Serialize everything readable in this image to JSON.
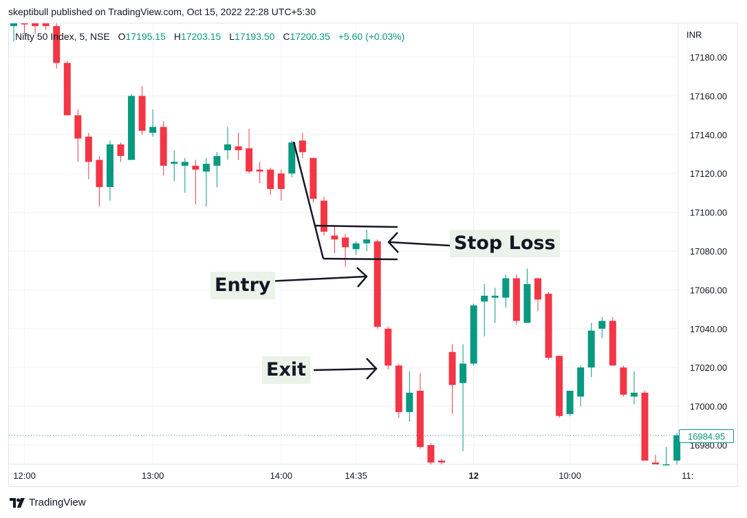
{
  "header": {
    "publisher_line": "skeptibull published on TradingView.com, Oct 15, 2022 22:28 UTC+5:30"
  },
  "legend": {
    "symbol": "Nifty 50 Index, 5, NSE",
    "open_label": "O",
    "open_value": "17195.15",
    "high_label": "H",
    "high_value": "17203.15",
    "low_label": "L",
    "low_value": "17193.50",
    "close_label": "C",
    "close_value": "17200.35",
    "change": "+5.60 (+0.03%)"
  },
  "currency": "INR",
  "last_price_tag": "16984.95",
  "footer": {
    "brand": "TradingView",
    "logo_icon": "tradingview-logo-icon"
  },
  "annotations": {
    "stop_loss": "Stop Loss",
    "entry": "Entry",
    "exit": "Exit"
  },
  "colors": {
    "up": "#089981",
    "down": "#f23645",
    "grid": "#f0f3fa",
    "annotation_bg": "#eaf2ea",
    "axis_text": "#131722"
  },
  "chart_data": {
    "type": "candlestick",
    "title": "",
    "xlabel": "",
    "ylabel": "",
    "ylim": [
      16970,
      17198
    ],
    "y_ticks": [
      "17180.00",
      "17160.00",
      "17140.00",
      "17120.00",
      "17100.00",
      "17080.00",
      "17060.00",
      "17040.00",
      "17020.00",
      "17000.00",
      "16980.00"
    ],
    "x_ticks": [
      {
        "label": "12:00",
        "index": 1
      },
      {
        "label": "13:00",
        "index": 13
      },
      {
        "label": "14:00",
        "index": 25
      },
      {
        "label": "14:35",
        "index": 32
      },
      {
        "label": "12",
        "index": 43
      },
      {
        "label": "10:00",
        "index": 52
      },
      {
        "label": "11:",
        "index": 63
      }
    ],
    "grid": true,
    "candles": [
      {
        "o": 17196,
        "h": 17200,
        "l": 17188,
        "c": 17199
      },
      {
        "o": 17204,
        "h": 17210,
        "l": 17192,
        "c": 17200
      },
      {
        "o": 17201,
        "h": 17206,
        "l": 17192,
        "c": 17196
      },
      {
        "o": 17204,
        "h": 17208,
        "l": 17194,
        "c": 17196
      },
      {
        "o": 17196,
        "h": 17200,
        "l": 17174,
        "c": 17177
      },
      {
        "o": 17177,
        "h": 17178,
        "l": 17150,
        "c": 17150
      },
      {
        "o": 17150,
        "h": 17153,
        "l": 17126,
        "c": 17138
      },
      {
        "o": 17139,
        "h": 17141,
        "l": 17117,
        "c": 17126
      },
      {
        "o": 17127,
        "h": 17129,
        "l": 17103,
        "c": 17113
      },
      {
        "o": 17113,
        "h": 17137,
        "l": 17106,
        "c": 17135
      },
      {
        "o": 17135,
        "h": 17136,
        "l": 17126,
        "c": 17129
      },
      {
        "o": 17127,
        "h": 17161,
        "l": 17127,
        "c": 17160
      },
      {
        "o": 17160,
        "h": 17165,
        "l": 17140,
        "c": 17142
      },
      {
        "o": 17141,
        "h": 17153,
        "l": 17139,
        "c": 17144
      },
      {
        "o": 17144,
        "h": 17147,
        "l": 17119,
        "c": 17124
      },
      {
        "o": 17125,
        "h": 17132,
        "l": 17116,
        "c": 17126
      },
      {
        "o": 17124,
        "h": 17128,
        "l": 17110,
        "c": 17126
      },
      {
        "o": 17124,
        "h": 17127,
        "l": 17104,
        "c": 17122
      },
      {
        "o": 17121,
        "h": 17128,
        "l": 17103,
        "c": 17125
      },
      {
        "o": 17124,
        "h": 17131,
        "l": 17113,
        "c": 17129
      },
      {
        "o": 17132,
        "h": 17144,
        "l": 17127,
        "c": 17135
      },
      {
        "o": 17134,
        "h": 17141,
        "l": 17127,
        "c": 17132
      },
      {
        "o": 17133,
        "h": 17143,
        "l": 17120,
        "c": 17121
      },
      {
        "o": 17122,
        "h": 17126,
        "l": 17115,
        "c": 17121
      },
      {
        "o": 17122,
        "h": 17123,
        "l": 17109,
        "c": 17112
      },
      {
        "o": 17120,
        "h": 17122,
        "l": 17106,
        "c": 17112
      },
      {
        "o": 17120,
        "h": 17137,
        "l": 17118,
        "c": 17136
      },
      {
        "o": 17137,
        "h": 17141,
        "l": 17128,
        "c": 17131
      },
      {
        "o": 17128,
        "h": 17128,
        "l": 17105,
        "c": 17107
      },
      {
        "o": 17106,
        "h": 17108,
        "l": 17088,
        "c": 17090
      },
      {
        "o": 17088,
        "h": 17093,
        "l": 17079,
        "c": 17086
      },
      {
        "o": 17087,
        "h": 17089,
        "l": 17072,
        "c": 17082
      },
      {
        "o": 17081,
        "h": 17085,
        "l": 17078,
        "c": 17084
      },
      {
        "o": 17084,
        "h": 17091,
        "l": 17080,
        "c": 17086
      },
      {
        "o": 17085,
        "h": 17086,
        "l": 17040,
        "c": 17041
      },
      {
        "o": 17040,
        "h": 17041,
        "l": 17019,
        "c": 17021
      },
      {
        "o": 17021,
        "h": 17022,
        "l": 16994,
        "c": 16997
      },
      {
        "o": 16997,
        "h": 17018,
        "l": 16992,
        "c": 17007
      },
      {
        "o": 17008,
        "h": 17017,
        "l": 16978,
        "c": 16979
      },
      {
        "o": 16980,
        "h": 16981,
        "l": 16970,
        "c": 16971
      },
      {
        "o": 16972,
        "h": 16973,
        "l": 16970,
        "c": 16971
      },
      {
        "o": 17028,
        "h": 17032,
        "l": 16996,
        "c": 17011
      },
      {
        "o": 17012,
        "h": 17032,
        "l": 16977,
        "c": 17022
      },
      {
        "o": 17022,
        "h": 17053,
        "l": 17021,
        "c": 17052
      },
      {
        "o": 17054,
        "h": 17063,
        "l": 17036,
        "c": 17057
      },
      {
        "o": 17056,
        "h": 17061,
        "l": 17043,
        "c": 17057
      },
      {
        "o": 17056,
        "h": 17068,
        "l": 17051,
        "c": 17066
      },
      {
        "o": 17066,
        "h": 17068,
        "l": 17042,
        "c": 17044
      },
      {
        "o": 17043,
        "h": 17071,
        "l": 17043,
        "c": 17063
      },
      {
        "o": 17066,
        "h": 17066,
        "l": 17049,
        "c": 17055
      },
      {
        "o": 17058,
        "h": 17059,
        "l": 17024,
        "c": 17025
      },
      {
        "o": 17026,
        "h": 17026,
        "l": 16994,
        "c": 16995
      },
      {
        "o": 16996,
        "h": 17008,
        "l": 16995,
        "c": 17008
      },
      {
        "o": 17005,
        "h": 17021,
        "l": 17000,
        "c": 17020
      },
      {
        "o": 17020,
        "h": 17043,
        "l": 17015,
        "c": 17039
      },
      {
        "o": 17040,
        "h": 17046,
        "l": 17035,
        "c": 17044
      },
      {
        "o": 17044,
        "h": 17046,
        "l": 17021,
        "c": 17021
      },
      {
        "o": 17020,
        "h": 17021,
        "l": 17005,
        "c": 17006
      },
      {
        "o": 17005,
        "h": 17018,
        "l": 17001,
        "c": 17007
      },
      {
        "o": 17007,
        "h": 17008,
        "l": 16972,
        "c": 16972
      },
      {
        "o": 16971,
        "h": 16975,
        "l": 16969,
        "c": 16970
      },
      {
        "o": 16970,
        "h": 16979,
        "l": 16969,
        "c": 16970
      },
      {
        "o": 16972,
        "h": 16986,
        "l": 16970,
        "c": 16985
      }
    ]
  }
}
